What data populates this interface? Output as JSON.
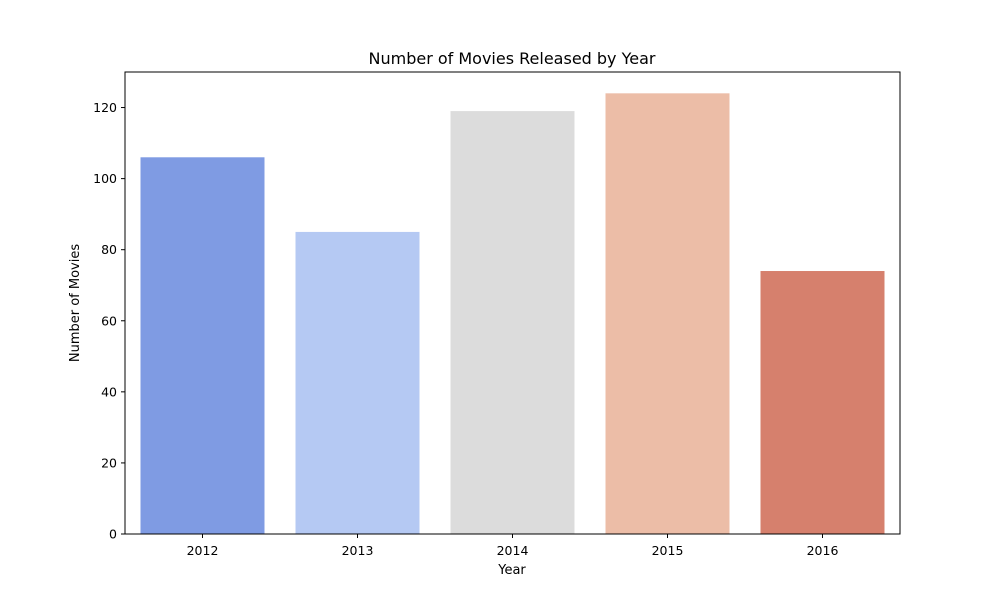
{
  "chart_data": {
    "type": "bar",
    "title": "Number of Movies Released by Year",
    "xlabel": "Year",
    "ylabel": "Number of Movies",
    "categories": [
      "2012",
      "2013",
      "2014",
      "2015",
      "2016"
    ],
    "values": [
      106,
      85,
      119,
      124,
      74
    ],
    "colors": [
      "#7f9be3",
      "#b5c9f3",
      "#dcdcdc",
      "#ecbda7",
      "#d6806d"
    ],
    "ylim": [
      0,
      130
    ],
    "yticks": [
      0,
      20,
      40,
      60,
      80,
      100,
      120
    ],
    "grid": false,
    "legend": "none"
  }
}
